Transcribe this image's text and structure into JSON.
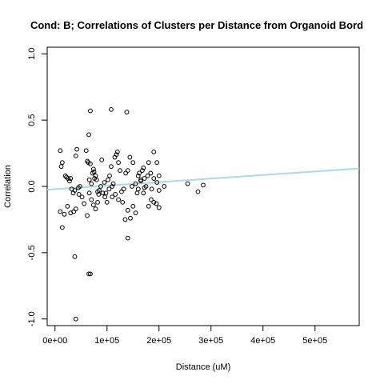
{
  "chart_data": {
    "type": "scatter",
    "title": "Cond: B; Correlations of Clusters per Distance from Organoid Bord",
    "xlabel": "Distance (uM)",
    "ylabel": "Correlation",
    "xlim": [
      -15000,
      585000
    ],
    "ylim": [
      -1.05,
      1.05
    ],
    "x_ticks": [
      0,
      100000,
      200000,
      300000,
      400000,
      500000
    ],
    "x_tick_labels": [
      "0e+00",
      "1e+05",
      "2e+05",
      "3e+05",
      "4e+05",
      "5e+05"
    ],
    "y_ticks": [
      -1.0,
      -0.5,
      0.0,
      0.5,
      1.0
    ],
    "y_tick_labels": [
      "-1.0",
      "-0.5",
      "0.0",
      "0.5",
      "1.0"
    ],
    "grid": false,
    "points": {
      "name": "",
      "marker": "open-circle",
      "color": "#000000",
      "x": [
        10000,
        12000,
        14000,
        20000,
        22000,
        25000,
        28000,
        30000,
        32000,
        35000,
        38000,
        40000,
        42000,
        45000,
        48000,
        10000,
        14000,
        18000,
        24000,
        30000,
        36000,
        40000,
        46000,
        52000,
        56000,
        60000,
        62000,
        64000,
        65000,
        66000,
        68000,
        70000,
        72000,
        74000,
        75000,
        76000,
        78000,
        80000,
        82000,
        84000,
        85000,
        62000,
        66000,
        70000,
        74000,
        78000,
        82000,
        88000,
        92000,
        96000,
        100000,
        90000,
        95000,
        98000,
        102000,
        105000,
        108000,
        110000,
        112000,
        115000,
        118000,
        120000,
        122000,
        125000,
        104000,
        110000,
        116000,
        122000,
        128000,
        132000,
        136000,
        140000,
        144000,
        148000,
        130000,
        135000,
        140000,
        145000,
        150000,
        155000,
        158000,
        160000,
        162000,
        165000,
        168000,
        170000,
        172000,
        175000,
        150000,
        155000,
        160000,
        170000,
        178000,
        184000,
        190000,
        196000,
        200000,
        180000,
        185000,
        190000,
        195000,
        200000,
        210000,
        255000,
        275000,
        285000,
        180000,
        190000,
        196000,
        200000,
        165000,
        172000,
        186000,
        68000,
        108000,
        138000,
        65000,
        38000,
        68000,
        40000,
        140000
      ],
      "y": [
        0.27,
        0.15,
        0.18,
        0.08,
        0.07,
        0.06,
        0.04,
        0.06,
        -0.02,
        -0.05,
        -0.03,
        0.23,
        0.28,
        -0.01,
        0.0,
        -0.19,
        -0.31,
        -0.21,
        -0.15,
        -0.2,
        -0.19,
        -0.17,
        -0.06,
        -0.08,
        -0.13,
        0.27,
        0.19,
        0.18,
        0.39,
        0.05,
        0.17,
        0.02,
        0.1,
        0.13,
        0.11,
        0.06,
        0.08,
        0.05,
        -0.04,
        -0.06,
        -0.03,
        -0.22,
        -0.05,
        -0.1,
        -0.14,
        -0.17,
        -0.12,
        0.0,
        -0.05,
        -0.08,
        -0.12,
        0.2,
        0.03,
        -0.05,
        0.05,
        0.08,
        0.15,
        0.0,
        0.02,
        0.22,
        0.24,
        0.26,
        0.18,
        0.12,
        -0.02,
        -0.08,
        -0.06,
        -0.1,
        -0.04,
        -0.02,
        0.1,
        0.12,
        0.22,
        0.0,
        -0.12,
        -0.25,
        -0.18,
        -0.24,
        -0.15,
        -0.2,
        -0.05,
        0.08,
        0.1,
        0.05,
        0.12,
        0.14,
        0.06,
        0.0,
        0.18,
        0.02,
        -0.02,
        -0.05,
        0.08,
        0.1,
        0.06,
        0.03,
        0.08,
        -0.15,
        -0.1,
        -0.12,
        -0.13,
        -0.16,
        0.0,
        0.02,
        -0.04,
        0.01,
        0.18,
        0.26,
        0.18,
        -0.03,
        0.04,
        -0.01,
        -0.02,
        0.57,
        0.58,
        0.56,
        -0.66,
        -0.53,
        -0.66,
        -1.0,
        -0.39
      ]
    },
    "trendline": {
      "color": "#add8e6",
      "x": [
        -15000,
        585000
      ],
      "y": [
        -0.025,
        0.135
      ]
    }
  }
}
